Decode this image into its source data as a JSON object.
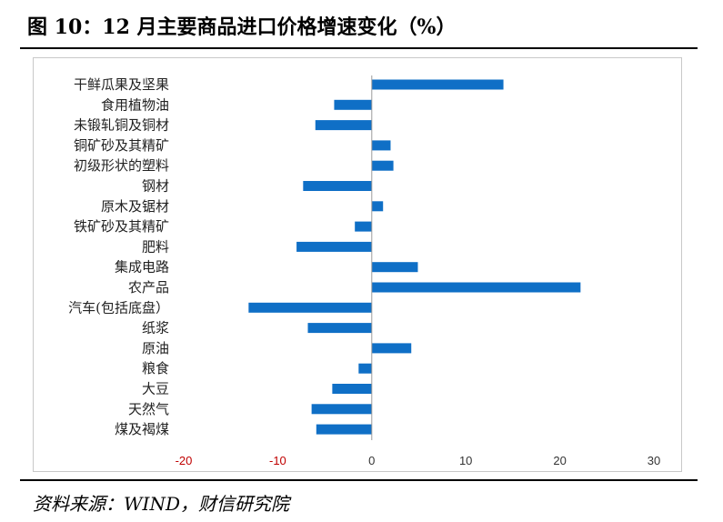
{
  "title": "图 10：12 月主要商品进口价格增速变化（%）",
  "source": "资料来源：WIND，财信研究院",
  "chart_data": {
    "type": "bar",
    "orientation": "horizontal",
    "title": "图 10：12 月主要商品进口价格增速变化（%）",
    "categories": [
      "干鲜瓜果及坚果",
      "食用植物油",
      "未锻轧铜及铜材",
      "铜矿砂及其精矿",
      "初级形状的塑料",
      "钢材",
      "原木及锯材",
      "铁矿砂及其精矿",
      "肥料",
      "集成电路",
      "农产品",
      "汽车(包括底盘）",
      "纸浆",
      "原油",
      "粮食",
      "大豆",
      "天然气",
      "煤及褐煤"
    ],
    "values": [
      14.0,
      -4.0,
      -6.0,
      2.0,
      2.3,
      -7.3,
      1.2,
      -1.8,
      -8.0,
      4.9,
      22.2,
      -13.1,
      -6.8,
      4.2,
      -1.4,
      -4.2,
      -6.4,
      -5.9
    ],
    "xlim": [
      -20,
      30
    ],
    "xticks": [
      -20,
      -10,
      0,
      10,
      20,
      30
    ],
    "xtick_labels": [
      "-20",
      "-10",
      "0",
      "10",
      "20",
      "30"
    ],
    "negative_tick_color": "#c00000",
    "positive_tick_color": "#333333",
    "bar_color": "#0f6fc6",
    "grid": false,
    "legend": "none"
  }
}
